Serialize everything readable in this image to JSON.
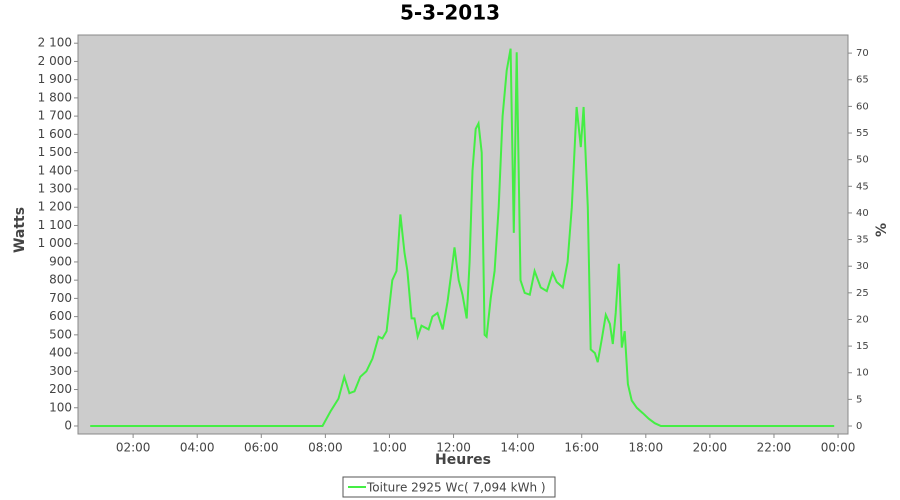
{
  "chart_data": {
    "type": "line",
    "title": "5-3-2013",
    "x_label": "Heures",
    "y_label": "Watts",
    "y2_label": "%",
    "x": [
      0.66,
      7.91,
      8.16,
      8.41,
      8.59,
      8.75,
      8.91,
      9.09,
      9.28,
      9.47,
      9.66,
      9.78,
      9.91,
      10.09,
      10.22,
      10.34,
      10.47,
      10.56,
      10.69,
      10.78,
      10.88,
      11.0,
      11.22,
      11.34,
      11.5,
      11.66,
      11.81,
      11.94,
      12.03,
      12.16,
      12.28,
      12.41,
      12.5,
      12.59,
      12.69,
      12.78,
      12.88,
      12.97,
      13.03,
      13.16,
      13.28,
      13.41,
      13.53,
      13.66,
      13.78,
      13.88,
      13.97,
      14.09,
      14.22,
      14.38,
      14.53,
      14.72,
      14.91,
      15.09,
      15.22,
      15.41,
      15.56,
      15.69,
      15.84,
      15.97,
      16.06,
      16.19,
      16.28,
      16.41,
      16.5,
      16.63,
      16.75,
      16.88,
      16.97,
      17.06,
      17.16,
      17.25,
      17.34,
      17.44,
      17.56,
      17.72,
      17.91,
      18.09,
      18.28,
      18.47,
      23.88
    ],
    "series": [
      {
        "name": "Toiture 2925 Wc( 7,094 kWh )",
        "color": "#44ee44",
        "values": [
          0,
          0,
          80,
          150,
          270,
          180,
          190,
          270,
          300,
          370,
          490,
          480,
          520,
          800,
          850,
          1160,
          950,
          850,
          590,
          590,
          490,
          550,
          530,
          600,
          620,
          530,
          680,
          850,
          980,
          800,
          720,
          590,
          900,
          1400,
          1630,
          1660,
          1500,
          500,
          490,
          700,
          850,
          1200,
          1700,
          1950,
          2070,
          1060,
          2050,
          800,
          730,
          720,
          850,
          760,
          740,
          840,
          790,
          760,
          900,
          1200,
          1750,
          1530,
          1750,
          1200,
          420,
          400,
          350,
          480,
          610,
          560,
          450,
          620,
          890,
          430,
          520,
          230,
          140,
          100,
          70,
          40,
          15,
          0,
          0
        ]
      }
    ],
    "xlim": [
      0.28,
      24.31
    ],
    "xticks": [
      {
        "value": 2,
        "label": "02:00"
      },
      {
        "value": 4,
        "label": "04:00"
      },
      {
        "value": 6,
        "label": "06:00"
      },
      {
        "value": 8,
        "label": "08:00"
      },
      {
        "value": 10,
        "label": "10:00"
      },
      {
        "value": 12,
        "label": "12:00"
      },
      {
        "value": 14,
        "label": "14:00"
      },
      {
        "value": 16,
        "label": "16:00"
      },
      {
        "value": 18,
        "label": "18:00"
      },
      {
        "value": 20,
        "label": "20:00"
      },
      {
        "value": 22,
        "label": "22:00"
      },
      {
        "value": 24,
        "label": "00:00"
      }
    ],
    "ylim": [
      -44,
      2145
    ],
    "yticks": [
      0,
      100,
      200,
      300,
      400,
      500,
      600,
      700,
      800,
      900,
      {
        "value": 1000,
        "label": "1 000"
      },
      {
        "value": 1100,
        "label": "1 100"
      },
      {
        "value": 1200,
        "label": "1 200"
      },
      {
        "value": 1300,
        "label": "1 300"
      },
      {
        "value": 1400,
        "label": "1 400"
      },
      {
        "value": 1500,
        "label": "1 500"
      },
      {
        "value": 1600,
        "label": "1 600"
      },
      {
        "value": 1700,
        "label": "1 700"
      },
      {
        "value": 1800,
        "label": "1 800"
      },
      {
        "value": 1900,
        "label": "1 900"
      },
      {
        "value": 2000,
        "label": "2 000"
      },
      {
        "value": 2100,
        "label": "2 100"
      }
    ],
    "y2lim": [
      -1.5,
      73.4
    ],
    "y2ticks": [
      0,
      5,
      10,
      15,
      20,
      25,
      30,
      35,
      40,
      45,
      50,
      55,
      60,
      65,
      70
    ],
    "grid": false
  }
}
